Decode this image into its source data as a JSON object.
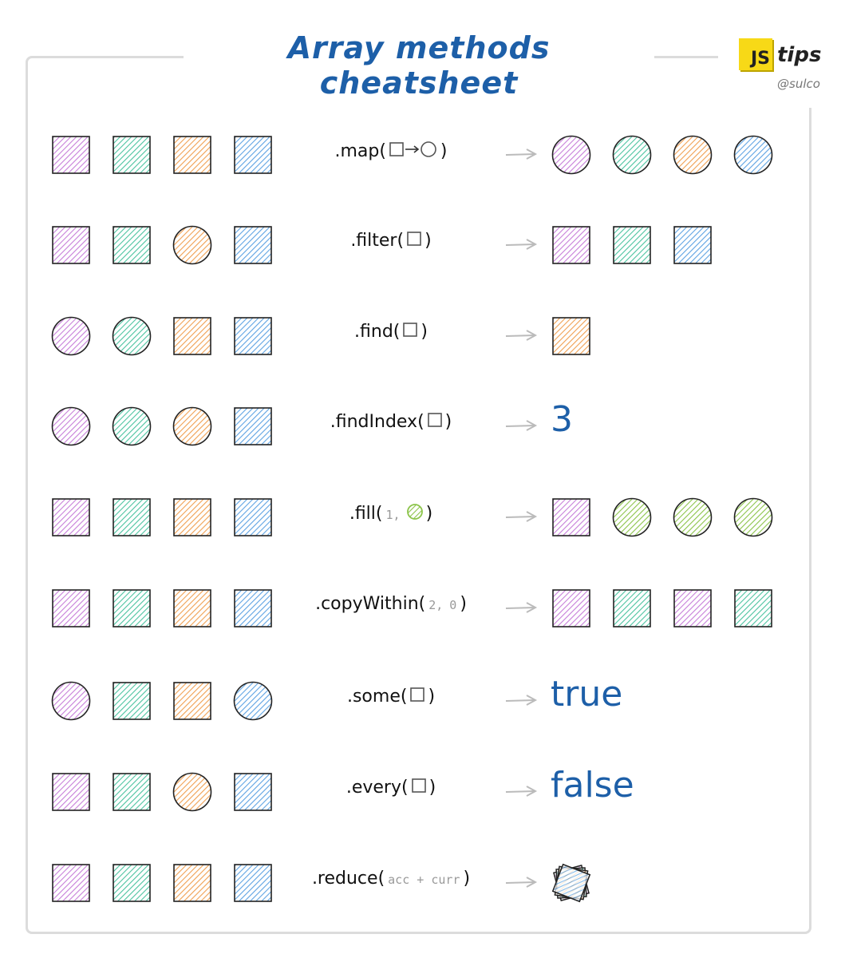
{
  "header": {
    "title": "Array methods cheatsheet",
    "logo_js": "JS",
    "logo_tips": "tips",
    "handle": "@sulco"
  },
  "colors": {
    "purple": "#c77fd9",
    "teal": "#4cc3a0",
    "orange": "#f0a052",
    "blue": "#5ea3e3",
    "green": "#8cc44a",
    "title": "#1d5fa8"
  },
  "rows": [
    {
      "method": ".map(",
      "close": ")",
      "args": [
        {
          "icon": "square-to-circle"
        }
      ],
      "input": [
        [
          "square",
          "purple"
        ],
        [
          "square",
          "teal"
        ],
        [
          "square",
          "orange"
        ],
        [
          "square",
          "blue"
        ]
      ],
      "output": [
        [
          "circle",
          "purple"
        ],
        [
          "circle",
          "teal"
        ],
        [
          "circle",
          "orange"
        ],
        [
          "circle",
          "blue"
        ]
      ]
    },
    {
      "method": ".filter(",
      "close": ")",
      "args": [
        {
          "icon": "square"
        }
      ],
      "input": [
        [
          "square",
          "purple"
        ],
        [
          "square",
          "teal"
        ],
        [
          "circle",
          "orange"
        ],
        [
          "square",
          "blue"
        ]
      ],
      "output": [
        [
          "square",
          "purple"
        ],
        [
          "square",
          "teal"
        ],
        [
          "square",
          "blue"
        ]
      ]
    },
    {
      "method": ".find(",
      "close": ")",
      "args": [
        {
          "icon": "square"
        }
      ],
      "input": [
        [
          "circle",
          "purple"
        ],
        [
          "circle",
          "teal"
        ],
        [
          "square",
          "orange"
        ],
        [
          "square",
          "blue"
        ]
      ],
      "output": [
        [
          "square",
          "orange"
        ]
      ]
    },
    {
      "method": ".findIndex(",
      "close": ")",
      "args": [
        {
          "icon": "square"
        }
      ],
      "input": [
        [
          "circle",
          "purple"
        ],
        [
          "circle",
          "teal"
        ],
        [
          "circle",
          "orange"
        ],
        [
          "square",
          "blue"
        ]
      ],
      "output_text": "3"
    },
    {
      "method": ".fill(",
      "close": ")",
      "args": [
        {
          "text": "1,"
        },
        {
          "icon": "green-circle"
        }
      ],
      "input": [
        [
          "square",
          "purple"
        ],
        [
          "square",
          "teal"
        ],
        [
          "square",
          "orange"
        ],
        [
          "square",
          "blue"
        ]
      ],
      "output": [
        [
          "square",
          "purple"
        ],
        [
          "circle",
          "green"
        ],
        [
          "circle",
          "green"
        ],
        [
          "circle",
          "green"
        ]
      ]
    },
    {
      "method": ".copyWithin(",
      "close": ")",
      "args": [
        {
          "text": "2,"
        },
        {
          "text": "0"
        }
      ],
      "input": [
        [
          "square",
          "purple"
        ],
        [
          "square",
          "teal"
        ],
        [
          "square",
          "orange"
        ],
        [
          "square",
          "blue"
        ]
      ],
      "output": [
        [
          "square",
          "purple"
        ],
        [
          "square",
          "teal"
        ],
        [
          "square",
          "purple"
        ],
        [
          "square",
          "teal"
        ]
      ]
    },
    {
      "method": ".some(",
      "close": ")",
      "args": [
        {
          "icon": "square"
        }
      ],
      "input": [
        [
          "circle",
          "purple"
        ],
        [
          "square",
          "teal"
        ],
        [
          "square",
          "orange"
        ],
        [
          "circle",
          "blue"
        ]
      ],
      "output_text": "true"
    },
    {
      "method": ".every(",
      "close": ")",
      "args": [
        {
          "icon": "square"
        }
      ],
      "input": [
        [
          "square",
          "purple"
        ],
        [
          "square",
          "teal"
        ],
        [
          "circle",
          "orange"
        ],
        [
          "square",
          "blue"
        ]
      ],
      "output_text": "false"
    },
    {
      "method": ".reduce(",
      "close": ")",
      "args": [
        {
          "text": "acc + curr"
        }
      ],
      "input": [
        [
          "square",
          "purple"
        ],
        [
          "square",
          "teal"
        ],
        [
          "square",
          "orange"
        ],
        [
          "square",
          "blue"
        ]
      ],
      "output": [
        [
          "stack",
          "mixed"
        ]
      ]
    }
  ]
}
